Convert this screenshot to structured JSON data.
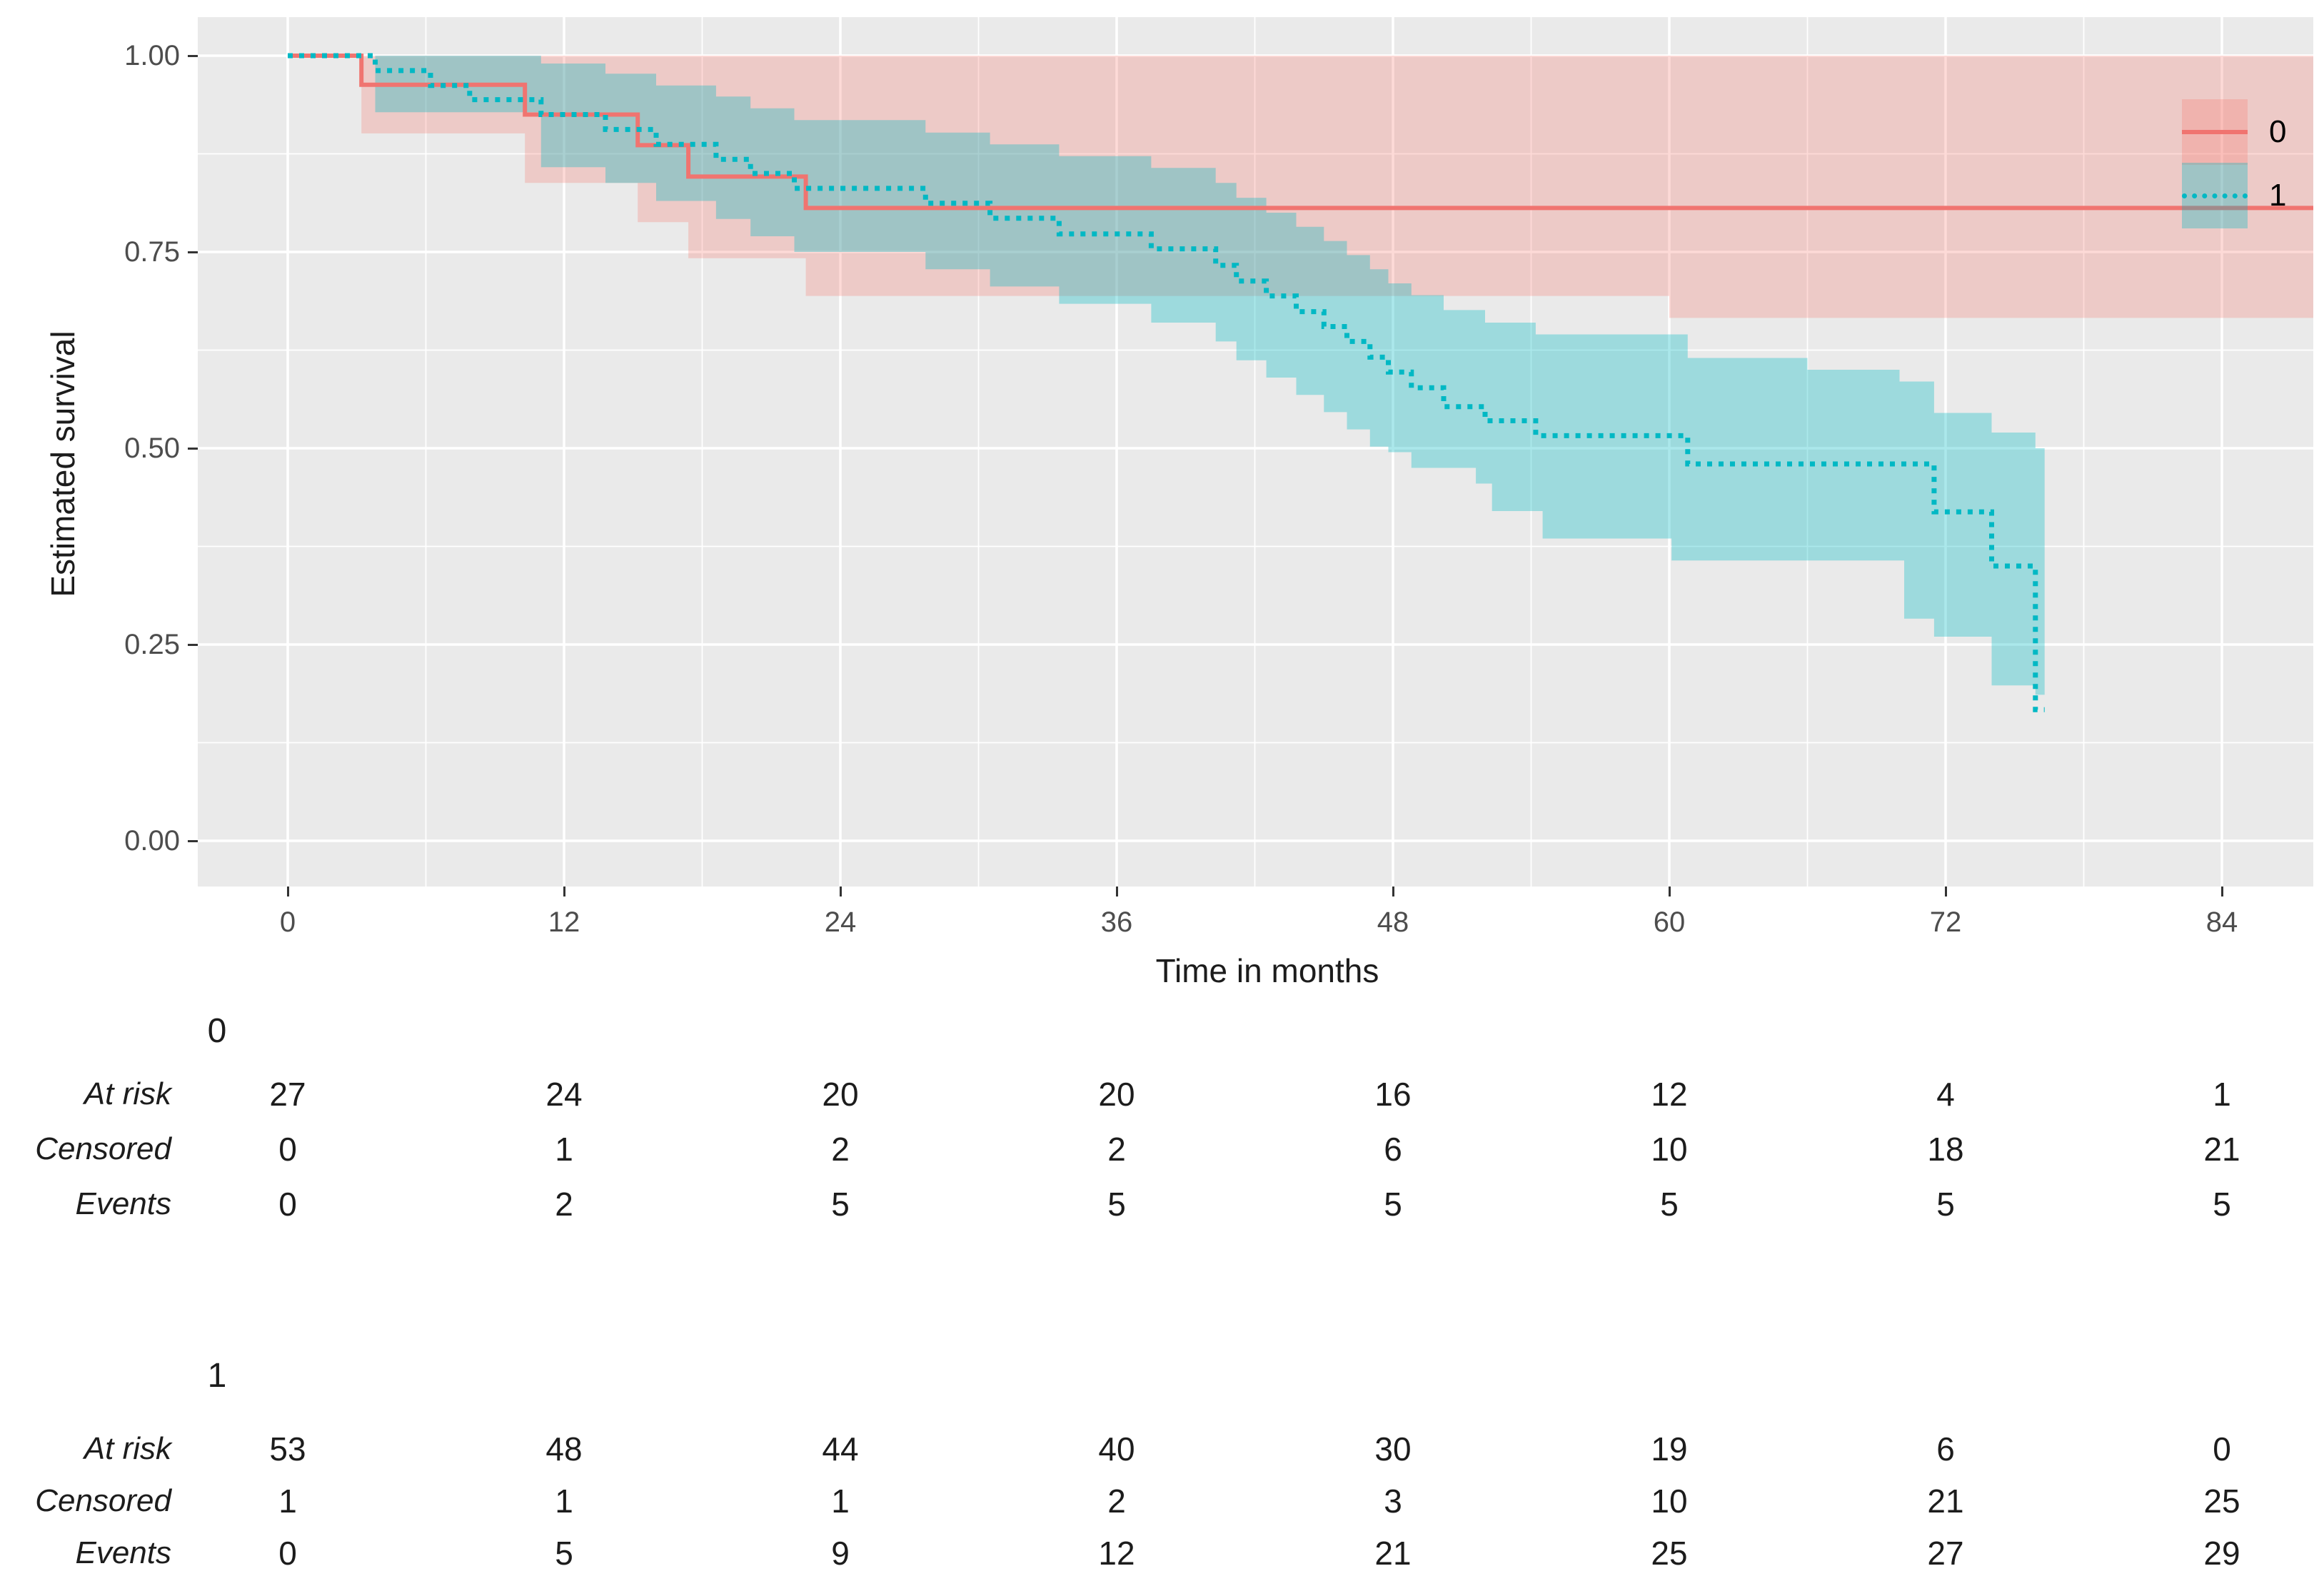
{
  "figure": {
    "background": "#ffffff",
    "panel_background": "#EAEAEA",
    "gridline_color": "#ffffff",
    "xlabel": "Time in months",
    "ylabel": "Estimated survival"
  },
  "legend": {
    "entries": [
      {
        "label": "0",
        "line_color": "#F07470",
        "line_style": "solid",
        "band_color": "rgba(248,118,109,0.27)"
      },
      {
        "label": "1",
        "line_color": "#00B8C4",
        "line_style": "dotted",
        "band_color": "rgba(0,184,193,0.33)"
      }
    ]
  },
  "chart_data": {
    "type": "line",
    "subtype": "kaplan-meier-step-with-confidence-bands",
    "title": "",
    "xlabel": "Time in months",
    "ylabel": "Estimated survival",
    "xlim": [
      -4,
      88
    ],
    "ylim": [
      0,
      1
    ],
    "x_ticks": [
      {
        "t": 0,
        "label": "0"
      },
      {
        "t": 12,
        "label": "12"
      },
      {
        "t": 24,
        "label": "24"
      },
      {
        "t": 36,
        "label": "36"
      },
      {
        "t": 48,
        "label": "48"
      },
      {
        "t": 60,
        "label": "60"
      },
      {
        "t": 72,
        "label": "72"
      },
      {
        "t": 84,
        "label": "84"
      }
    ],
    "y_ticks": [
      {
        "v": 1.0,
        "label": "1.00"
      },
      {
        "v": 0.75,
        "label": "0.75"
      },
      {
        "v": 0.5,
        "label": "0.50"
      },
      {
        "v": 0.25,
        "label": "0.25"
      },
      {
        "v": 0.0,
        "label": "0.00"
      }
    ],
    "x_minor_ticks": [
      6,
      18,
      30,
      42,
      54,
      66,
      78
    ],
    "y_minor_ticks": [
      0.125,
      0.375,
      0.625,
      0.875
    ],
    "grid": "white major and minor gridlines on grey panel",
    "legend_position": "inside top-right",
    "series": [
      {
        "name": "0",
        "color": "#F07470",
        "line_style": "solid",
        "points": [
          [
            0,
            1.0
          ],
          [
            3.2,
            0.963
          ],
          [
            10.3,
            0.925
          ],
          [
            15.2,
            0.886
          ],
          [
            17.4,
            0.846
          ],
          [
            22.5,
            0.806
          ],
          [
            88,
            0.806
          ]
        ],
        "band_color": "rgba(248,118,109,0.27)",
        "ci_upper": [
          [
            3.2,
            1.0
          ],
          [
            88,
            1.0
          ]
        ],
        "ci_lower": [
          [
            3.2,
            0.901
          ],
          [
            10.3,
            0.838
          ],
          [
            15.2,
            0.788
          ],
          [
            17.4,
            0.742
          ],
          [
            22.5,
            0.694
          ],
          [
            60,
            0.666
          ],
          [
            88,
            0.666
          ]
        ]
      },
      {
        "name": "1",
        "color": "#00B8C4",
        "line_style": "dotted",
        "points": [
          [
            0,
            1.0
          ],
          [
            3.8,
            0.981
          ],
          [
            6.2,
            0.962
          ],
          [
            7.9,
            0.944
          ],
          [
            11.0,
            0.925
          ],
          [
            13.8,
            0.906
          ],
          [
            16.0,
            0.887
          ],
          [
            18.6,
            0.868
          ],
          [
            20.1,
            0.85
          ],
          [
            22.0,
            0.831
          ],
          [
            27.7,
            0.812
          ],
          [
            30.5,
            0.793
          ],
          [
            33.5,
            0.773
          ],
          [
            37.5,
            0.754
          ],
          [
            40.3,
            0.733
          ],
          [
            41.2,
            0.713
          ],
          [
            42.5,
            0.694
          ],
          [
            43.8,
            0.674
          ],
          [
            45.0,
            0.655
          ],
          [
            46.0,
            0.636
          ],
          [
            47.0,
            0.616
          ],
          [
            47.8,
            0.597
          ],
          [
            48.8,
            0.577
          ],
          [
            50.2,
            0.553
          ],
          [
            52.0,
            0.535
          ],
          [
            54.2,
            0.516
          ],
          [
            60.8,
            0.48
          ],
          [
            71.5,
            0.419
          ],
          [
            74.0,
            0.35
          ],
          [
            75.9,
            0.167
          ],
          [
            76.3,
            0.167
          ]
        ],
        "band_color": "rgba(0,184,193,0.33)",
        "ci_upper": [
          [
            3.8,
            1.0
          ],
          [
            11.0,
            0.99
          ],
          [
            13.8,
            0.977
          ],
          [
            16.0,
            0.962
          ],
          [
            18.6,
            0.948
          ],
          [
            20.1,
            0.933
          ],
          [
            22.0,
            0.918
          ],
          [
            27.7,
            0.902
          ],
          [
            30.5,
            0.887
          ],
          [
            33.5,
            0.872
          ],
          [
            37.5,
            0.857
          ],
          [
            40.3,
            0.838
          ],
          [
            41.2,
            0.819
          ],
          [
            42.5,
            0.8
          ],
          [
            43.8,
            0.782
          ],
          [
            45.0,
            0.764
          ],
          [
            46.0,
            0.746
          ],
          [
            47.0,
            0.728
          ],
          [
            47.8,
            0.71
          ],
          [
            48.8,
            0.695
          ],
          [
            50.2,
            0.676
          ],
          [
            52.0,
            0.66
          ],
          [
            54.2,
            0.645
          ],
          [
            60.8,
            0.615
          ],
          [
            66.0,
            0.6
          ],
          [
            70.0,
            0.585
          ],
          [
            71.5,
            0.545
          ],
          [
            74.0,
            0.52
          ],
          [
            75.9,
            0.5
          ],
          [
            76.3,
            0.5
          ]
        ],
        "ci_lower": [
          [
            3.8,
            0.928
          ],
          [
            11.0,
            0.858
          ],
          [
            13.8,
            0.838
          ],
          [
            16.0,
            0.815
          ],
          [
            18.6,
            0.792
          ],
          [
            20.1,
            0.77
          ],
          [
            22.0,
            0.75
          ],
          [
            27.7,
            0.728
          ],
          [
            30.5,
            0.706
          ],
          [
            33.5,
            0.684
          ],
          [
            37.5,
            0.66
          ],
          [
            40.3,
            0.636
          ],
          [
            41.2,
            0.612
          ],
          [
            42.5,
            0.59
          ],
          [
            43.8,
            0.568
          ],
          [
            45.0,
            0.546
          ],
          [
            46.0,
            0.524
          ],
          [
            47.0,
            0.502
          ],
          [
            47.8,
            0.495
          ],
          [
            48.8,
            0.475
          ],
          [
            51.6,
            0.455
          ],
          [
            52.3,
            0.42
          ],
          [
            54.5,
            0.385
          ],
          [
            60.1,
            0.357
          ],
          [
            70.2,
            0.283
          ],
          [
            71.5,
            0.26
          ],
          [
            74.0,
            0.198
          ],
          [
            75.9,
            0.186
          ],
          [
            76.3,
            0.186
          ]
        ]
      }
    ]
  },
  "risk_tables": [
    {
      "group_label": "0",
      "time_points": [
        0,
        12,
        24,
        36,
        48,
        60,
        72,
        84
      ],
      "rows": [
        {
          "label": "At risk",
          "values": [
            27,
            24,
            20,
            20,
            16,
            12,
            4,
            1
          ]
        },
        {
          "label": "Censored",
          "values": [
            0,
            1,
            2,
            2,
            6,
            10,
            18,
            21
          ]
        },
        {
          "label": "Events",
          "values": [
            0,
            2,
            5,
            5,
            5,
            5,
            5,
            5
          ]
        }
      ]
    },
    {
      "group_label": "1",
      "time_points": [
        0,
        12,
        24,
        36,
        48,
        60,
        72,
        84
      ],
      "rows": [
        {
          "label": "At risk",
          "values": [
            53,
            48,
            44,
            40,
            30,
            19,
            6,
            0
          ]
        },
        {
          "label": "Censored",
          "values": [
            1,
            1,
            1,
            2,
            3,
            10,
            21,
            25
          ]
        },
        {
          "label": "Events",
          "values": [
            0,
            5,
            9,
            12,
            21,
            25,
            27,
            29
          ]
        }
      ]
    }
  ]
}
